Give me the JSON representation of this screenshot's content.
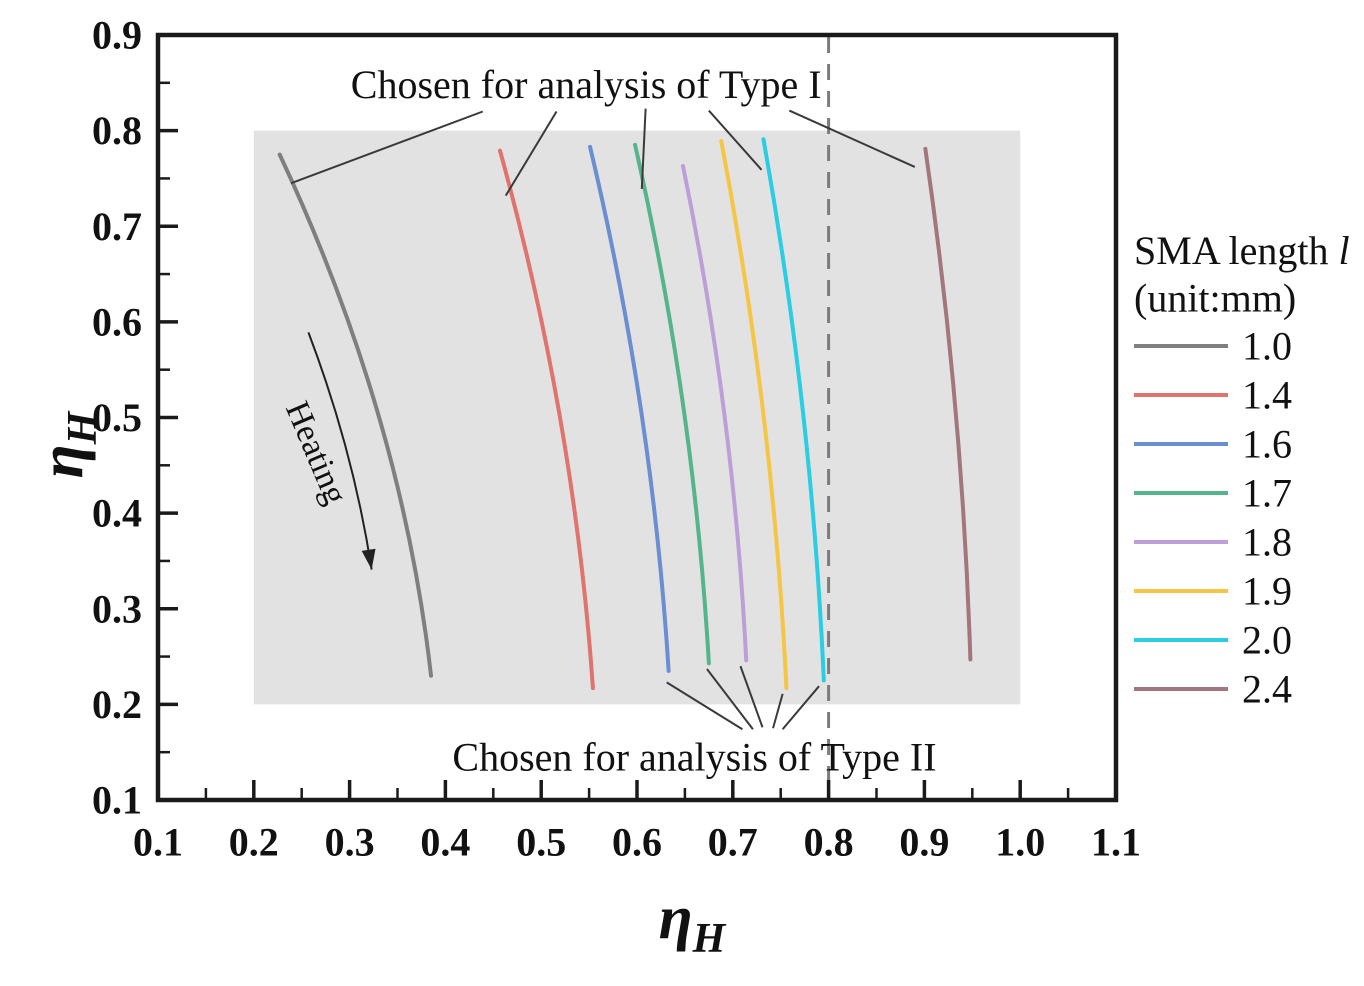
{
  "figure": {
    "description": "Line chart of eta_H curves for different SMA lengths with shaded feasible region"
  },
  "chart_data": {
    "type": "line",
    "xlabel": {
      "symbol": "η",
      "subscript": "H"
    },
    "ylabel": {
      "symbol": "η",
      "subscript": "H"
    },
    "xlim": [
      0.1,
      1.1
    ],
    "ylim": [
      0.1,
      0.9
    ],
    "x_tick_labels": [
      "0.1",
      "0.2",
      "0.3",
      "0.4",
      "0.5",
      "0.6",
      "0.7",
      "0.8",
      "0.9",
      "1.0",
      "1.1"
    ],
    "y_tick_labels": [
      "0.1",
      "0.2",
      "0.3",
      "0.4",
      "0.5",
      "0.6",
      "0.7",
      "0.8",
      "0.9"
    ],
    "minor_tick_step": 0.05,
    "grid": false,
    "frame_color": "#1a1a1a",
    "shaded_region": {
      "x": [
        0.2,
        1.0
      ],
      "y": [
        0.2,
        0.8
      ],
      "color": "#e2e2e2"
    },
    "dashed_line": {
      "x": 0.8,
      "color": "#7c7c7c"
    },
    "series": [
      {
        "label": "1.0",
        "color": "#7f7f7f",
        "points": [
          [
            0.227,
            0.775
          ],
          [
            0.33,
            0.503
          ],
          [
            0.385,
            0.23
          ]
        ]
      },
      {
        "label": "1.4",
        "color": "#e0736e",
        "points": [
          [
            0.457,
            0.779
          ],
          [
            0.52,
            0.498
          ],
          [
            0.554,
            0.217
          ]
        ]
      },
      {
        "label": "1.6",
        "color": "#6a8ed0",
        "points": [
          [
            0.551,
            0.783
          ],
          [
            0.604,
            0.509
          ],
          [
            0.633,
            0.235
          ]
        ]
      },
      {
        "label": "1.7",
        "color": "#56b48d",
        "points": [
          [
            0.598,
            0.785
          ],
          [
            0.648,
            0.514
          ],
          [
            0.675,
            0.243
          ]
        ]
      },
      {
        "label": "1.8",
        "color": "#bd9ed9",
        "points": [
          [
            0.648,
            0.763
          ],
          [
            0.691,
            0.505
          ],
          [
            0.714,
            0.246
          ]
        ]
      },
      {
        "label": "1.9",
        "color": "#f5c544",
        "points": [
          [
            0.688,
            0.789
          ],
          [
            0.732,
            0.503
          ],
          [
            0.756,
            0.217
          ]
        ]
      },
      {
        "label": "2.0",
        "color": "#2acde2",
        "points": [
          [
            0.732,
            0.791
          ],
          [
            0.773,
            0.508
          ],
          [
            0.795,
            0.225
          ]
        ]
      },
      {
        "label": "2.4",
        "color": "#a3767d",
        "points": [
          [
            0.901,
            0.781
          ],
          [
            0.932,
            0.514
          ],
          [
            0.948,
            0.247
          ]
        ]
      }
    ],
    "legend": {
      "title_line1": {
        "text": "SMA length ",
        "symbol": "l"
      },
      "title_line2": "(unit:mm)",
      "position": "right"
    },
    "annotations": {
      "type1": {
        "text": "Chosen for analysis of Type I",
        "x": 0.547,
        "y": 0.848,
        "leaders": [
          [
            0.439,
            0.82,
            0.239,
            0.745
          ],
          [
            0.516,
            0.82,
            0.463,
            0.732
          ],
          [
            0.609,
            0.823,
            0.605,
            0.739
          ],
          [
            0.675,
            0.821,
            0.73,
            0.759
          ],
          [
            0.759,
            0.821,
            0.89,
            0.762
          ]
        ]
      },
      "type2": {
        "text": "Chosen for analysis of Type II",
        "x": 0.66,
        "y": 0.145,
        "leaders": [
          [
            0.631,
            0.223,
            0.71,
            0.174
          ],
          [
            0.673,
            0.237,
            0.721,
            0.174
          ],
          [
            0.708,
            0.24,
            0.731,
            0.176
          ],
          [
            0.752,
            0.211,
            0.742,
            0.175
          ],
          [
            0.79,
            0.219,
            0.752,
            0.174
          ]
        ]
      },
      "heating": {
        "text": "Heating",
        "x": 0.265,
        "y": 0.463,
        "angle": 67,
        "arrow": {
          "from": [
            0.257,
            0.589
          ],
          "mid": [
            0.304,
            0.465
          ],
          "to": [
            0.323,
            0.341
          ]
        }
      }
    },
    "leader_color": "#3a3a3a",
    "text_color": "#111111"
  }
}
